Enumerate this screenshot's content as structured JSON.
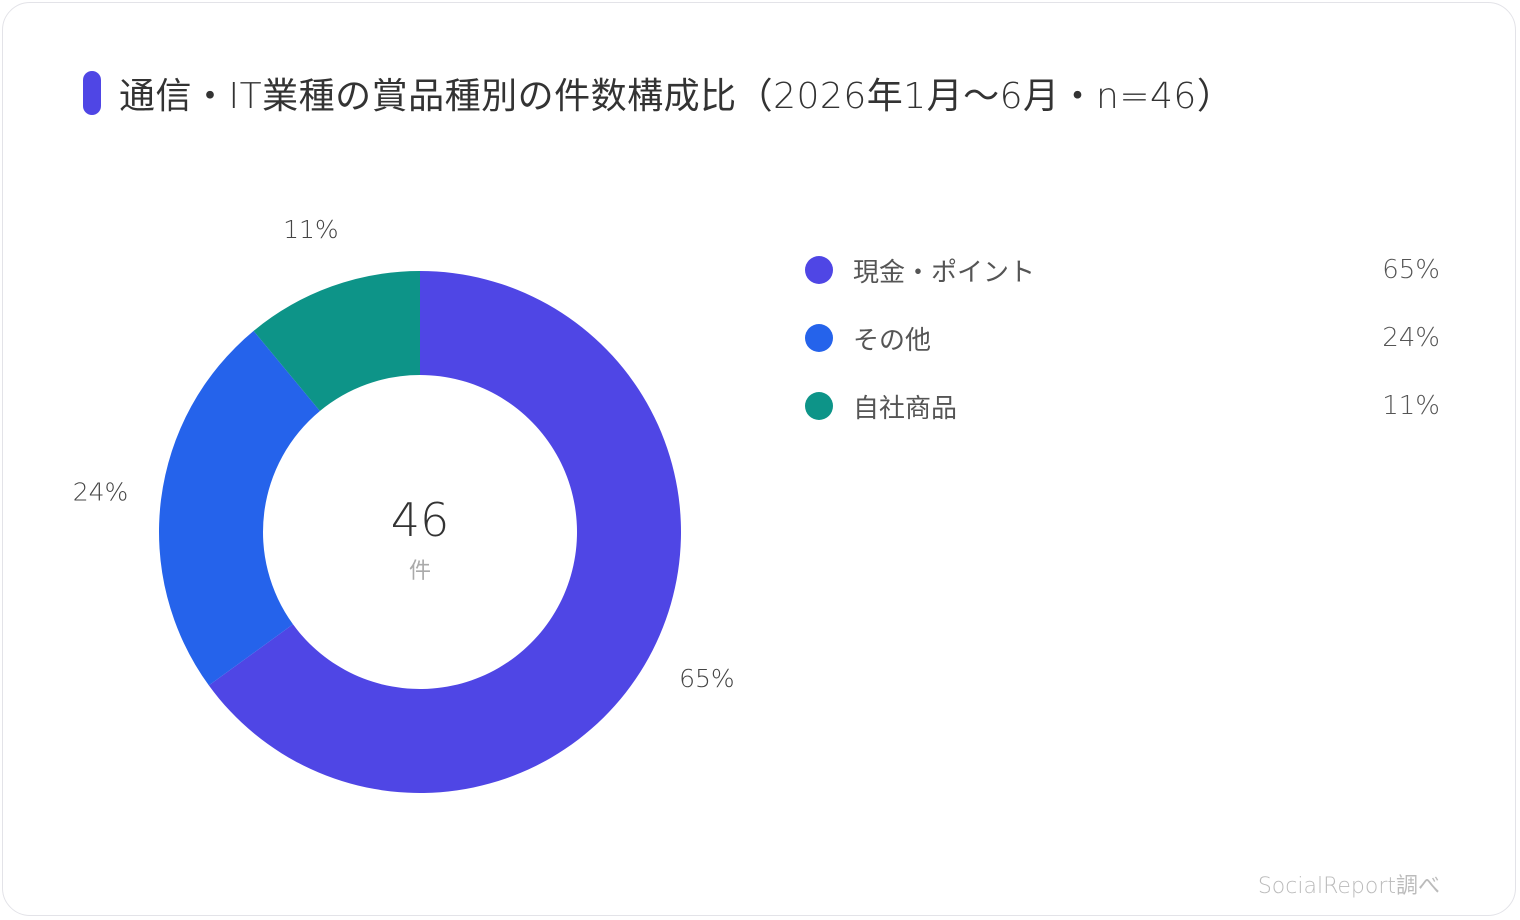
{
  "title": "通信・IT業種の賞品種別の件数構成比（2026年1月〜6月・n=46）",
  "source": "SocialReport調べ",
  "colors": {
    "title_marker": "#4f46e5"
  },
  "chart_data": {
    "type": "pie",
    "title": "通信・IT業種の賞品種別の件数構成比（2026年1月〜6月・n=46）",
    "donut": true,
    "center": {
      "total": "46",
      "unit": "件"
    },
    "categories": [
      "現金・ポイント",
      "その他",
      "自社商品"
    ],
    "values": [
      65,
      24,
      11
    ],
    "labels": [
      "65%",
      "24%",
      "11%"
    ],
    "colors": [
      "#4f46e5",
      "#2563eb",
      "#0d9488"
    ],
    "legend": "right"
  }
}
